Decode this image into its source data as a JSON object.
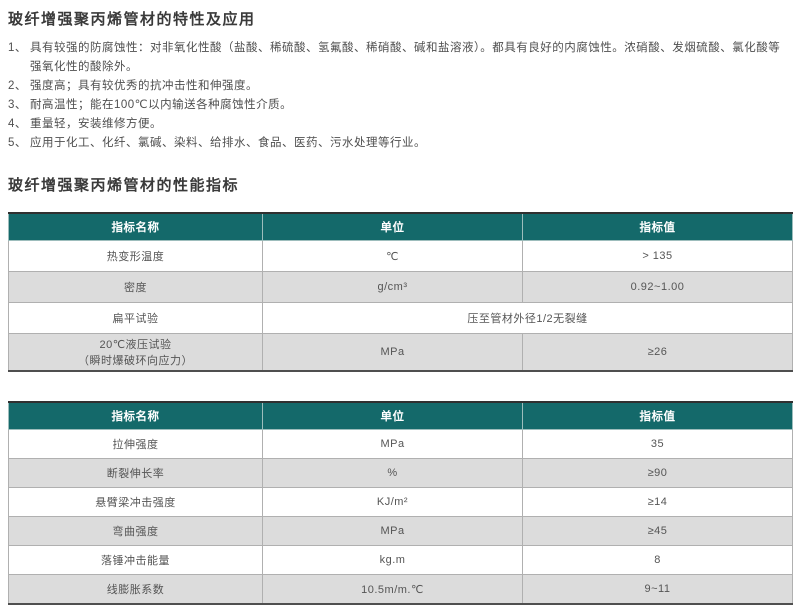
{
  "colors": {
    "header_teal": "#14696a",
    "row_gray": "#dcdcdc",
    "row_white": "#ffffff",
    "text": "#4f4f4f"
  },
  "sections": {
    "features": {
      "title": "玻纤增强聚丙烯管材的特性及应用",
      "items": [
        {
          "num": "1、",
          "text": "具有较强的防腐蚀性：对非氧化性酸（盐酸、稀硫酸、氢氟酸、稀硝酸、碱和盐溶液）。都具有良好的内腐蚀性。浓硝酸、发烟硫酸、氯化酸等强氧化性的酸除外。"
        },
        {
          "num": "2、",
          "text": "强度高；具有较优秀的抗冲击性和伸强度。"
        },
        {
          "num": "3、",
          "text": "耐高温性；能在100℃以内输送各种腐蚀性介质。"
        },
        {
          "num": "4、",
          "text": "重量轻，安装维修方便。"
        },
        {
          "num": "5、",
          "text": "应用于化工、化纤、氯碱、染料、给排水、食品、医药、污水处理等行业。"
        }
      ]
    },
    "specs": {
      "title": "玻纤增强聚丙烯管材的性能指标"
    }
  },
  "tables": [
    {
      "headers": [
        "指标名称",
        "单位",
        "指标值"
      ],
      "rows": [
        {
          "cells": [
            {
              "text": "热变形温度"
            },
            {
              "text": "℃"
            },
            {
              "text": "> 135"
            }
          ]
        },
        {
          "cells": [
            {
              "text": "密度"
            },
            {
              "text": "g/cm³"
            },
            {
              "text": "0.92~1.00"
            }
          ]
        },
        {
          "cells": [
            {
              "text": "扁平试验"
            },
            {
              "text": "压至管材外径1/2无裂缝",
              "colspan": 2
            }
          ]
        },
        {
          "cells": [
            {
              "text": "20℃液压试验\n（瞬时爆破环向应力）"
            },
            {
              "text": "MPa"
            },
            {
              "text": "≥26"
            }
          ]
        }
      ]
    },
    {
      "headers": [
        "指标名称",
        "单位",
        "指标值"
      ],
      "rows": [
        {
          "cells": [
            {
              "text": "拉伸强度"
            },
            {
              "text": "MPa"
            },
            {
              "text": "35"
            }
          ]
        },
        {
          "cells": [
            {
              "text": "断裂伸长率"
            },
            {
              "text": "%"
            },
            {
              "text": "≥90"
            }
          ]
        },
        {
          "cells": [
            {
              "text": "悬臂梁冲击强度"
            },
            {
              "text": "KJ/m²"
            },
            {
              "text": "≥14"
            }
          ]
        },
        {
          "cells": [
            {
              "text": "弯曲强度"
            },
            {
              "text": "MPa"
            },
            {
              "text": "≥45"
            }
          ]
        },
        {
          "cells": [
            {
              "text": "落锤冲击能量"
            },
            {
              "text": "kg.m"
            },
            {
              "text": "8"
            }
          ]
        },
        {
          "cells": [
            {
              "text": "线膨胀系数"
            },
            {
              "text": "10.5m/m.℃"
            },
            {
              "text": "9~11"
            }
          ]
        }
      ]
    }
  ]
}
